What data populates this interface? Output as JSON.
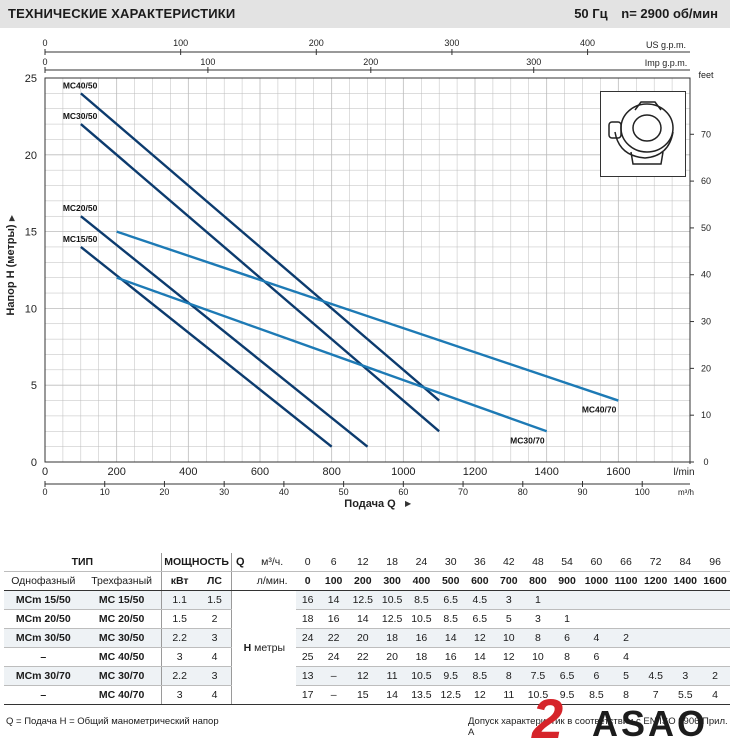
{
  "header": {
    "title": "ТЕХНИЧЕСКИЕ ХАРАКТЕРИСТИКИ",
    "freq": "50 Гц",
    "speed": "n= 2900 об/мин"
  },
  "colors": {
    "dark_series": "#0c3b6e",
    "light_series": "#1d7ab5",
    "grid": "#bcbcbc"
  },
  "chart_data": {
    "type": "line",
    "ylabel": "Напор H (метры)",
    "xlabel": "Подача Q",
    "x_unit_lmin": "l/min",
    "x_unit_m3h": "m³/h",
    "y_unit_feet": "feet",
    "top_axis_us": "US g.p.m.",
    "top_axis_imp": "Imp g.p.m.",
    "xlim": [
      0,
      1800
    ],
    "ylim": [
      0,
      25
    ],
    "x_ticks_lmin": [
      0,
      200,
      400,
      600,
      800,
      1000,
      1200,
      1400,
      1600
    ],
    "x_ticks_m3h": [
      0,
      10,
      20,
      30,
      40,
      50,
      60,
      70,
      80,
      90,
      100
    ],
    "y_ticks": [
      0,
      5,
      10,
      15,
      20,
      25
    ],
    "feet_ticks": [
      0,
      10,
      20,
      30,
      40,
      50,
      60,
      70
    ],
    "us_ticks": [
      0,
      100,
      200,
      300,
      400
    ],
    "imp_ticks": [
      0,
      100,
      200,
      300
    ],
    "grid": true,
    "series": [
      {
        "name": "MC40/50",
        "color": "dark",
        "x": [
          100,
          1100
        ],
        "y": [
          24.0,
          4.0
        ]
      },
      {
        "name": "MC30/50",
        "color": "dark",
        "x": [
          100,
          1100
        ],
        "y": [
          22.0,
          2.0
        ]
      },
      {
        "name": "MC20/50",
        "color": "dark",
        "x": [
          100,
          900
        ],
        "y": [
          16.0,
          1.0
        ]
      },
      {
        "name": "MC15/50",
        "color": "dark",
        "x": [
          100,
          800
        ],
        "y": [
          14.0,
          1.0
        ]
      },
      {
        "name": "MC40/70",
        "color": "light",
        "x": [
          200,
          1600
        ],
        "y": [
          15.0,
          4.0
        ]
      },
      {
        "name": "MC30/70",
        "color": "light",
        "x": [
          200,
          1400
        ],
        "y": [
          12.0,
          2.0
        ]
      }
    ]
  },
  "spec_table": {
    "type_header": "ТИП",
    "power_header": "МОЩНОСТЬ",
    "single_phase": "Однофазный",
    "three_phase": "Трехфазный",
    "kw": "кВт",
    "hp": "ЛС",
    "q_label": "Q",
    "q_unit_m3": "м³/ч.",
    "q_unit_lmin": "л/мин.",
    "h_label": "H",
    "h_unit": "метры",
    "q_m3": [
      "0",
      "6",
      "12",
      "18",
      "24",
      "30",
      "36",
      "42",
      "48",
      "54",
      "60",
      "66",
      "72",
      "84",
      "96"
    ],
    "q_lmin": [
      "0",
      "100",
      "200",
      "300",
      "400",
      "500",
      "600",
      "700",
      "800",
      "900",
      "1000",
      "1100",
      "1200",
      "1400",
      "1600"
    ],
    "rows": [
      {
        "single": "MCm 15/50",
        "three": "MC 15/50",
        "kw": "1.1",
        "hp": "1.5",
        "h": [
          "16",
          "14",
          "12.5",
          "10.5",
          "8.5",
          "6.5",
          "4.5",
          "3",
          "1",
          "",
          "",
          "",
          "",
          "",
          ""
        ]
      },
      {
        "single": "MCm 20/50",
        "three": "MC 20/50",
        "kw": "1.5",
        "hp": "2",
        "h": [
          "18",
          "16",
          "14",
          "12.5",
          "10.5",
          "8.5",
          "6.5",
          "5",
          "3",
          "1",
          "",
          "",
          "",
          "",
          ""
        ]
      },
      {
        "single": "MCm 30/50",
        "three": "MC 30/50",
        "kw": "2.2",
        "hp": "3",
        "h": [
          "24",
          "22",
          "20",
          "18",
          "16",
          "14",
          "12",
          "10",
          "8",
          "6",
          "4",
          "2",
          "",
          "",
          ""
        ]
      },
      {
        "single": "–",
        "three": "MC 40/50",
        "kw": "3",
        "hp": "4",
        "h": [
          "25",
          "24",
          "22",
          "20",
          "18",
          "16",
          "14",
          "12",
          "10",
          "8",
          "6",
          "4",
          "",
          "",
          ""
        ]
      },
      {
        "single": "MCm 30/70",
        "three": "MC 30/70",
        "kw": "2.2",
        "hp": "3",
        "h": [
          "13",
          "–",
          "12",
          "11",
          "10.5",
          "9.5",
          "8.5",
          "8",
          "7.5",
          "6.5",
          "6",
          "5",
          "4.5",
          "3",
          "2"
        ]
      },
      {
        "single": "–",
        "three": "MC 40/70",
        "kw": "3",
        "hp": "4",
        "h": [
          "17",
          "–",
          "15",
          "14",
          "13.5",
          "12.5",
          "12",
          "11",
          "10.5",
          "9.5",
          "8.5",
          "8",
          "7",
          "5.5",
          "4"
        ]
      }
    ]
  },
  "footer": {
    "legend": "Q = Подача   H = Общий манометрический напор",
    "note": "Допуск характеристик в соответствии с EN ISO 9906 Прил. А"
  },
  "logo": {
    "text": "ASAO",
    "number": "2"
  }
}
